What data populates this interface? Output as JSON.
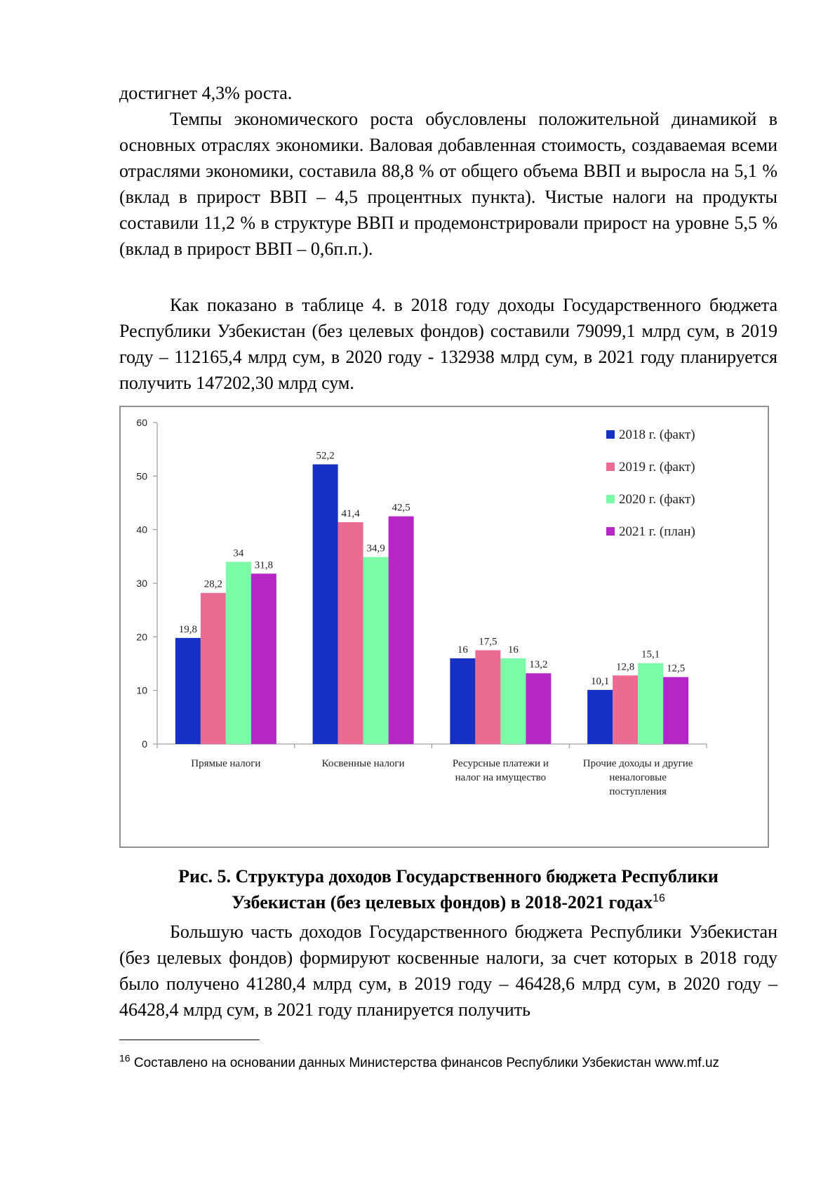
{
  "paragraphs": [
    "достигнет 4,3% роста.",
    "Темпы экономического роста обусловлены положительной динамикой в основных отраслях экономики. Валовая добавленная стоимость, создаваемая всеми отраслями экономики, составила 88,8 % от общего объема ВВП и выросла на 5,1 % (вклад в прирост ВВП – 4,5 процентных пункта). Чистые налоги на продукты составили 11,2 % в структуре ВВП и продемонстрировали прирост на уровне 5,5 % (вклад в прирост ВВП – 0,6п.п.).",
    "Как показано в таблице 4. в 2018 году доходы Государственного бюджета Республики Узбекистан (без целевых фондов) составили 79099,1 млрд сум, в 2019 году – 112165,4 млрд сум, в 2020 году - 132938 млрд сум, в 2021 году планируется получить 147202,30 млрд сум.",
    "Большую часть доходов Государственного бюджета Республики Узбекистан (без целевых фондов) формируют косвенные налоги, за счет которых в 2018 году было получено 41280,4 млрд сум, в 2019 году – 46428,6 млрд сум, в 2020 году – 46428,4 млрд сум, в 2021 году планируется получить"
  ],
  "caption": {
    "line1": "Рис. 5. Структура доходов Государственного бюджета Республики",
    "line2": "Узбекистан (без целевых фондов) в 2018-2021 годах",
    "footnote_ref": "16"
  },
  "footnote": {
    "number": "16",
    "text": "Составлено на основании данных Министерства финансов Республики Узбекистан www.mf.uz"
  },
  "chart_data": {
    "type": "bar",
    "categories": [
      [
        "Прямые налоги"
      ],
      [
        "Косвенные налоги"
      ],
      [
        "Ресурсные платежи и",
        "налог на имущество"
      ],
      [
        "Прочие доходы и другие",
        "неналоговые",
        "поступления"
      ]
    ],
    "series": [
      {
        "name": "2018 г. (факт)",
        "color": "#1530c2",
        "values": [
          19.8,
          52.2,
          16,
          10.1
        ],
        "labels": [
          "19,8",
          "52,2",
          "16",
          "10,1"
        ]
      },
      {
        "name": "2019 г. (факт)",
        "color": "#ec6b93",
        "values": [
          28.2,
          41.4,
          17.5,
          12.8
        ],
        "labels": [
          "28,2",
          "41,4",
          "17,5",
          "12,8"
        ]
      },
      {
        "name": "2020 г. (факт)",
        "color": "#7cfba6",
        "values": [
          34,
          34.9,
          16,
          15.1
        ],
        "labels": [
          "34",
          "34,9",
          "16",
          "15,1"
        ]
      },
      {
        "name": "2021 г. (план)",
        "color": "#b526c7",
        "values": [
          31.8,
          42.5,
          13.2,
          12.5
        ],
        "labels": [
          "31,8",
          "42,5",
          "13,2",
          "12,5"
        ]
      }
    ],
    "yticks": [
      "0",
      "10",
      "20",
      "30",
      "40",
      "50",
      "60"
    ],
    "ylim": [
      0,
      60
    ],
    "grid": false,
    "legend": "right"
  }
}
